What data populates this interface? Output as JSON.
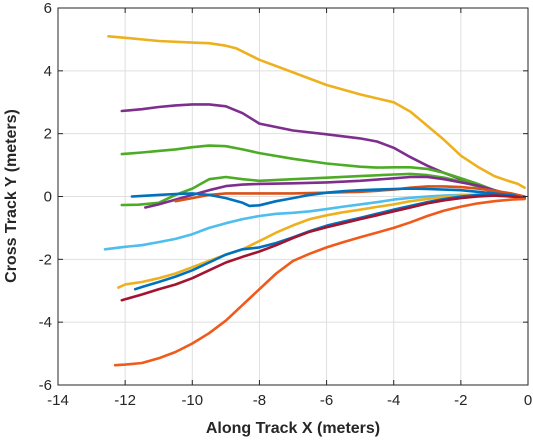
{
  "chart_data": {
    "type": "line",
    "title": "",
    "xlabel": "Along Track X (meters)",
    "ylabel": "Cross Track Y (meters)",
    "xlim": [
      -14,
      0
    ],
    "ylim": [
      -6,
      6
    ],
    "xticks": [
      -14,
      -12,
      -10,
      -8,
      -6,
      -4,
      -2,
      0
    ],
    "yticks": [
      -6,
      -4,
      -2,
      0,
      2,
      4,
      6
    ],
    "xtick_labels": [
      "-14",
      "-12",
      "-10",
      "-8",
      "-6",
      "-4",
      "-2",
      "0"
    ],
    "ytick_labels": [
      "-6",
      "-4",
      "-2",
      "0",
      "2",
      "4",
      "6"
    ],
    "grid": true,
    "legend": "none",
    "series": [
      {
        "color": "#EDB120",
        "x": [
          -12.5,
          -12,
          -11,
          -10,
          -9.5,
          -9,
          -8.7,
          -8,
          -7,
          -6,
          -5,
          -4,
          -3.5,
          -3,
          -2.5,
          -2,
          -1.5,
          -1,
          -0.6,
          -0.3,
          -0.1
        ],
        "y": [
          5.1,
          5.05,
          4.95,
          4.9,
          4.88,
          4.8,
          4.72,
          4.35,
          3.95,
          3.55,
          3.25,
          3.0,
          2.7,
          2.25,
          1.8,
          1.3,
          0.95,
          0.65,
          0.5,
          0.4,
          0.28
        ]
      },
      {
        "color": "#7E2F8E",
        "x": [
          -12.1,
          -11.5,
          -11,
          -10.5,
          -10,
          -9.5,
          -9,
          -8.5,
          -8,
          -7,
          -6,
          -5,
          -4.5,
          -4,
          -3.5,
          -3,
          -2.5,
          -2,
          -1.5,
          -1,
          -0.5,
          -0.1
        ],
        "y": [
          2.72,
          2.78,
          2.85,
          2.9,
          2.93,
          2.93,
          2.87,
          2.65,
          2.32,
          2.1,
          1.98,
          1.85,
          1.75,
          1.55,
          1.25,
          0.98,
          0.75,
          0.55,
          0.35,
          0.2,
          0.05,
          -0.05
        ]
      },
      {
        "color": "#4DAC26",
        "x": [
          -12.1,
          -11.5,
          -11,
          -10.5,
          -10,
          -9.5,
          -9,
          -8.5,
          -8,
          -7,
          -6,
          -5,
          -4.5,
          -4,
          -3.5,
          -3,
          -2.5,
          -2,
          -1.5,
          -1,
          -0.5,
          -0.1
        ],
        "y": [
          1.35,
          1.4,
          1.45,
          1.5,
          1.57,
          1.62,
          1.6,
          1.5,
          1.38,
          1.2,
          1.05,
          0.95,
          0.92,
          0.93,
          0.93,
          0.88,
          0.75,
          0.58,
          0.4,
          0.2,
          0.05,
          -0.02
        ]
      },
      {
        "color": "#4DAC26",
        "x": [
          -12.1,
          -11.6,
          -11,
          -10.5,
          -10,
          -9.5,
          -9,
          -8.5,
          -8,
          -7,
          -6,
          -5,
          -4,
          -3.5,
          -3,
          -2.5,
          -2,
          -1.5,
          -1,
          -0.5,
          -0.2
        ],
        "y": [
          -0.27,
          -0.26,
          -0.2,
          0.05,
          0.25,
          0.55,
          0.62,
          0.55,
          0.5,
          0.55,
          0.6,
          0.65,
          0.7,
          0.72,
          0.68,
          0.6,
          0.48,
          0.32,
          0.12,
          0.02,
          -0.05
        ]
      },
      {
        "color": "#7E2F8E",
        "x": [
          -11.4,
          -11,
          -10.5,
          -10,
          -9.5,
          -9,
          -8.5,
          -8,
          -7,
          -6,
          -5,
          -4,
          -3.5,
          -3,
          -2.5,
          -2,
          -1.5,
          -1,
          -0.5,
          -0.1
        ],
        "y": [
          -0.35,
          -0.25,
          -0.1,
          0.05,
          0.2,
          0.33,
          0.38,
          0.4,
          0.42,
          0.45,
          0.5,
          0.58,
          0.62,
          0.62,
          0.55,
          0.45,
          0.35,
          0.2,
          0.05,
          -0.05
        ]
      },
      {
        "color": "#D95319",
        "x": [
          -10.5,
          -10,
          -9.5,
          -9,
          -8,
          -7,
          -6,
          -5,
          -4.5,
          -4,
          -3.5,
          -3,
          -2.5,
          -2,
          -1.5,
          -1,
          -0.5,
          -0.1
        ],
        "y": [
          -0.15,
          -0.05,
          0.05,
          0.1,
          0.1,
          0.1,
          0.12,
          0.15,
          0.18,
          0.22,
          0.28,
          0.32,
          0.32,
          0.3,
          0.25,
          0.18,
          0.1,
          0.0
        ]
      },
      {
        "color": "#0072BD",
        "x": [
          -11.8,
          -11.5,
          -11,
          -10.5,
          -10,
          -9.5,
          -9,
          -8.5,
          -8.3,
          -8,
          -7.5,
          -7,
          -6.5,
          -6,
          -5.5,
          -5,
          -4.5,
          -4,
          -3.5,
          -3,
          -2.5,
          -2,
          -1.5,
          -1,
          -0.5,
          -0.1
        ],
        "y": [
          0.0,
          0.02,
          0.05,
          0.08,
          0.1,
          0.05,
          -0.05,
          -0.2,
          -0.3,
          -0.28,
          -0.15,
          -0.05,
          0.05,
          0.12,
          0.17,
          0.2,
          0.22,
          0.24,
          0.25,
          0.24,
          0.22,
          0.2,
          0.15,
          0.1,
          0.03,
          -0.05
        ]
      },
      {
        "color": "#4DBEEE",
        "x": [
          -12.6,
          -12,
          -11.5,
          -11,
          -10.5,
          -10,
          -9.5,
          -9,
          -8.5,
          -8,
          -7.5,
          -7,
          -6.5,
          -6,
          -5.5,
          -5,
          -4.5,
          -4,
          -3.5,
          -3,
          -2.5,
          -2,
          -1.5,
          -1,
          -0.5,
          -0.1
        ],
        "y": [
          -1.68,
          -1.6,
          -1.55,
          -1.45,
          -1.35,
          -1.2,
          -1.0,
          -0.85,
          -0.72,
          -0.62,
          -0.55,
          -0.52,
          -0.47,
          -0.4,
          -0.32,
          -0.25,
          -0.18,
          -0.1,
          -0.04,
          0.0,
          0.03,
          0.05,
          0.05,
          0.03,
          0.0,
          -0.05
        ]
      },
      {
        "color": "#EDB120",
        "x": [
          -12.2,
          -12,
          -11.5,
          -11,
          -10.5,
          -10,
          -9.5,
          -9,
          -8.5,
          -8,
          -7.5,
          -7,
          -6.5,
          -6,
          -5.5,
          -5,
          -4.5,
          -4,
          -3.5,
          -3,
          -2.5,
          -2,
          -1.5,
          -1,
          -0.5,
          -0.1
        ],
        "y": [
          -2.9,
          -2.8,
          -2.72,
          -2.6,
          -2.45,
          -2.25,
          -2.05,
          -1.85,
          -1.68,
          -1.42,
          -1.15,
          -0.92,
          -0.72,
          -0.6,
          -0.5,
          -0.42,
          -0.33,
          -0.25,
          -0.15,
          -0.08,
          -0.02,
          0.03,
          0.06,
          0.05,
          0.0,
          -0.08
        ]
      },
      {
        "color": "#0072BD",
        "x": [
          -11.7,
          -11.5,
          -11,
          -10.5,
          -10,
          -9.5,
          -9,
          -8.5,
          -8,
          -7.5,
          -7,
          -6.5,
          -6,
          -5.5,
          -5,
          -4.5,
          -4,
          -3.5,
          -3,
          -2.5,
          -2,
          -1.5,
          -1,
          -0.5,
          -0.1
        ],
        "y": [
          -2.95,
          -2.88,
          -2.72,
          -2.55,
          -2.35,
          -2.1,
          -1.85,
          -1.68,
          -1.62,
          -1.48,
          -1.3,
          -1.1,
          -0.93,
          -0.8,
          -0.68,
          -0.55,
          -0.42,
          -0.3,
          -0.18,
          -0.08,
          0.0,
          0.05,
          0.07,
          0.05,
          -0.05
        ]
      },
      {
        "color": "#A2142F",
        "x": [
          -12.1,
          -11.5,
          -11,
          -10.5,
          -10,
          -9.5,
          -9,
          -8.5,
          -8,
          -7.5,
          -7,
          -6.5,
          -6,
          -5.5,
          -5,
          -4.5,
          -4,
          -3.5,
          -3,
          -2.5,
          -2,
          -1.5,
          -1,
          -0.5,
          -0.1
        ],
        "y": [
          -3.3,
          -3.12,
          -2.95,
          -2.8,
          -2.6,
          -2.35,
          -2.1,
          -1.92,
          -1.75,
          -1.55,
          -1.32,
          -1.12,
          -0.98,
          -0.85,
          -0.72,
          -0.6,
          -0.47,
          -0.35,
          -0.22,
          -0.12,
          -0.05,
          0.0,
          0.03,
          0.0,
          -0.05
        ]
      },
      {
        "color": "#F05A1A",
        "x": [
          -12.3,
          -12,
          -11.5,
          -11,
          -10.5,
          -10,
          -9.5,
          -9,
          -8.5,
          -8,
          -7.5,
          -7,
          -6.5,
          -6,
          -5.5,
          -5,
          -4.5,
          -4,
          -3.5,
          -3,
          -2.5,
          -2,
          -1.5,
          -1,
          -0.5,
          -0.1
        ],
        "y": [
          -5.37,
          -5.35,
          -5.3,
          -5.15,
          -4.95,
          -4.68,
          -4.35,
          -3.95,
          -3.45,
          -2.95,
          -2.45,
          -2.05,
          -1.82,
          -1.62,
          -1.45,
          -1.3,
          -1.15,
          -1.0,
          -0.82,
          -0.62,
          -0.45,
          -0.32,
          -0.22,
          -0.15,
          -0.1,
          -0.08
        ]
      }
    ]
  }
}
